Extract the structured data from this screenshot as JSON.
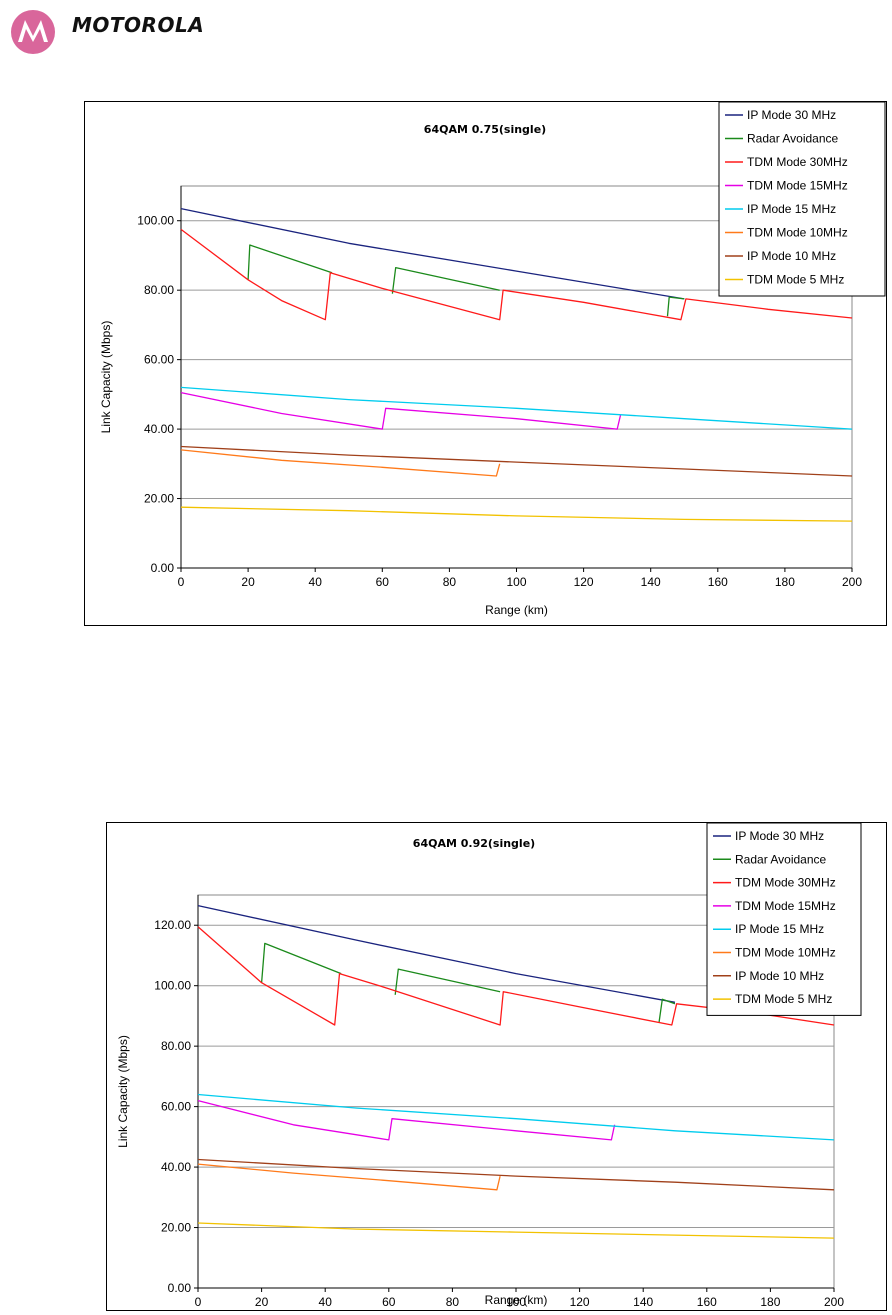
{
  "header": {
    "logo_text": "MOTOROLA",
    "logo_icon": "motorola-batwing-icon",
    "logo_color": "#d9669b"
  },
  "chart_data": [
    {
      "type": "line",
      "title": "64QAM 0.75(single)",
      "xlabel": "Range (km)",
      "ylabel": "Link Capacity (Mbps)",
      "xlim": [
        0,
        200
      ],
      "ylim": [
        0,
        110
      ],
      "xticks": [
        0,
        20,
        40,
        60,
        80,
        100,
        120,
        140,
        160,
        180,
        200
      ],
      "xtick_labels": [
        "0",
        "20",
        "40",
        "60",
        "80",
        "100",
        "120",
        "140",
        "160",
        "180",
        "200"
      ],
      "yticks": [
        0,
        20,
        40,
        60,
        80,
        100
      ],
      "ytick_labels": [
        "0.00",
        "20.00",
        "40.00",
        "60.00",
        "80.00",
        "100.00"
      ],
      "grid": "horizontal",
      "legend_position": "top-right",
      "series": [
        {
          "name": "IP Mode 30 MHz",
          "color": "#1a237e",
          "x": [
            0,
            50,
            100,
            150
          ],
          "y": [
            103.5,
            93.5,
            85.5,
            77.5
          ]
        },
        {
          "name": "Radar Avoidance",
          "color": "#1b8a1b",
          "x": [
            20,
            20.5,
            45,
            null,
            63,
            64,
            95,
            null,
            145,
            145.5,
            150
          ],
          "y": [
            83,
            93,
            85,
            null,
            79,
            86.5,
            80,
            null,
            72.5,
            78,
            77.5
          ]
        },
        {
          "name": "TDM Mode 30MHz",
          "color": "#ff1a1a",
          "x": [
            0,
            20,
            30,
            43,
            44.5,
            60,
            95,
            96,
            120,
            149,
            150.5,
            175,
            200
          ],
          "y": [
            97.5,
            83,
            77,
            71.5,
            85,
            80.5,
            71.5,
            80,
            76.5,
            71.5,
            77.5,
            74.5,
            72
          ]
        },
        {
          "name": "TDM Mode 15MHz",
          "color": "#e600e6",
          "x": [
            0,
            30,
            60,
            61,
            100,
            130,
            131
          ],
          "y": [
            50.5,
            44.5,
            40,
            46,
            43,
            40,
            44
          ]
        },
        {
          "name": "IP Mode 15 MHz",
          "color": "#00ccee",
          "x": [
            0,
            50,
            100,
            150,
            200
          ],
          "y": [
            52,
            48.5,
            46,
            43,
            40
          ]
        },
        {
          "name": "TDM Mode 10MHz",
          "color": "#ff7a1a",
          "x": [
            0,
            30,
            60,
            94,
            95
          ],
          "y": [
            34,
            31,
            29,
            26.5,
            30
          ]
        },
        {
          "name": "IP Mode 10 MHz",
          "color": "#a0401a",
          "x": [
            0,
            50,
            100,
            150,
            200
          ],
          "y": [
            35,
            32.5,
            30.5,
            28.5,
            26.5
          ]
        },
        {
          "name": "TDM Mode 5 MHz",
          "color": "#f2c200",
          "x": [
            0,
            50,
            100,
            150,
            200
          ],
          "y": [
            17.5,
            16.5,
            15,
            14,
            13.5
          ]
        }
      ]
    },
    {
      "type": "line",
      "title": "64QAM 0.92(single)",
      "xlabel": "Range (km)",
      "ylabel": "Link Capacity (Mbps)",
      "xlim": [
        0,
        200
      ],
      "ylim": [
        0,
        130
      ],
      "xticks": [
        0,
        20,
        40,
        60,
        80,
        100,
        120,
        140,
        160,
        180,
        200
      ],
      "xtick_labels": [
        "0",
        "20",
        "40",
        "60",
        "80",
        "100",
        "120",
        "140",
        "160",
        "180",
        "200"
      ],
      "yticks": [
        0,
        20,
        40,
        60,
        80,
        100,
        120
      ],
      "ytick_labels": [
        "0.00",
        "20.00",
        "40.00",
        "60.00",
        "80.00",
        "100.00",
        "120.00"
      ],
      "grid": "horizontal",
      "legend_position": "top-right",
      "series": [
        {
          "name": "IP Mode 30 MHz",
          "color": "#1a237e",
          "x": [
            0,
            50,
            100,
            150
          ],
          "y": [
            126.5,
            115,
            104,
            94.5
          ]
        },
        {
          "name": "Radar Avoidance",
          "color": "#1b8a1b",
          "x": [
            20,
            21,
            45,
            null,
            62,
            63,
            95,
            null,
            145,
            146,
            150
          ],
          "y": [
            101,
            114,
            104,
            null,
            97,
            105.5,
            98,
            null,
            88,
            95.5,
            94
          ]
        },
        {
          "name": "TDM Mode 30MHz",
          "color": "#ff1a1a",
          "x": [
            0,
            20,
            43,
            44.5,
            60,
            95,
            96,
            120,
            149,
            150.5,
            175,
            200
          ],
          "y": [
            119.5,
            101,
            87,
            104,
            99,
            87,
            98,
            93,
            87,
            94,
            91,
            87
          ]
        },
        {
          "name": "TDM Mode 15MHz",
          "color": "#e600e6",
          "x": [
            0,
            30,
            60,
            61,
            100,
            130,
            131
          ],
          "y": [
            62,
            54,
            49,
            56,
            52,
            49,
            54
          ]
        },
        {
          "name": "IP Mode 15 MHz",
          "color": "#00ccee",
          "x": [
            0,
            50,
            100,
            150,
            200
          ],
          "y": [
            64,
            59.5,
            56,
            52,
            49
          ]
        },
        {
          "name": "TDM Mode 10MHz",
          "color": "#ff7a1a",
          "x": [
            0,
            30,
            60,
            94,
            95
          ],
          "y": [
            41,
            38,
            35.5,
            32.5,
            37
          ]
        },
        {
          "name": "IP Mode 10 MHz",
          "color": "#a0401a",
          "x": [
            0,
            50,
            100,
            150,
            200
          ],
          "y": [
            42.5,
            39.5,
            37,
            35,
            32.5
          ]
        },
        {
          "name": "TDM Mode 5 MHz",
          "color": "#f2c200",
          "x": [
            0,
            50,
            100,
            150,
            200
          ],
          "y": [
            21.5,
            19.5,
            18.5,
            17.5,
            16.5
          ]
        }
      ]
    }
  ]
}
